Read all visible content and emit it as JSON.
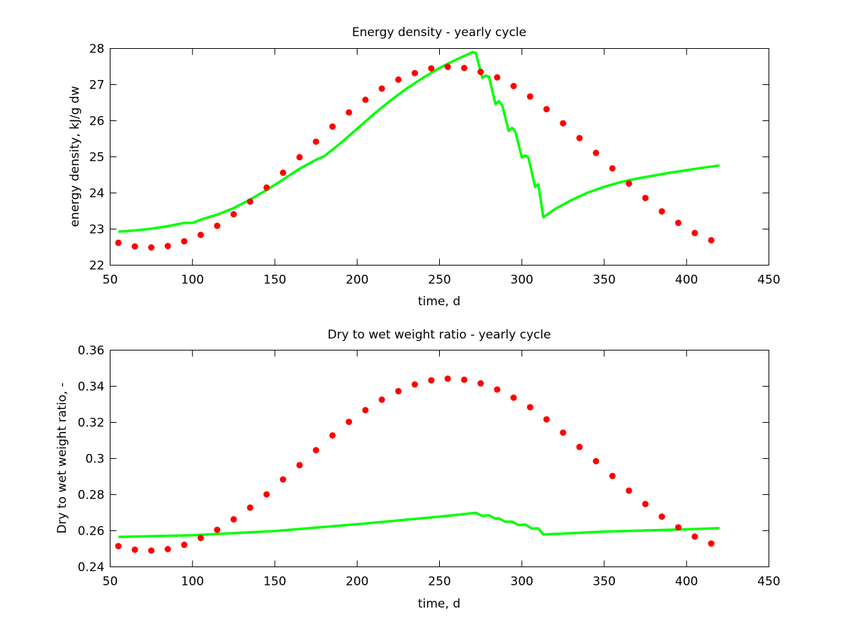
{
  "chart_data": [
    {
      "type": "scatter",
      "title": "Energy density - yearly cycle",
      "xlabel": "time, d",
      "ylabel": "energy density, kJ/g dw",
      "xlim": [
        50,
        450
      ],
      "ylim": [
        22,
        28
      ],
      "xticks": [
        50,
        100,
        150,
        200,
        250,
        300,
        350,
        400,
        450
      ],
      "yticks": [
        22,
        23,
        24,
        25,
        26,
        27,
        28
      ],
      "grid": false,
      "colors": {
        "points": "#ff0000",
        "line": "#00ff00"
      },
      "series": [
        {
          "kind": "points",
          "x": [
            55,
            65,
            75,
            85,
            95,
            105,
            115,
            125,
            135,
            145,
            155,
            165,
            175,
            185,
            195,
            205,
            215,
            225,
            235,
            245,
            255,
            265,
            275,
            285,
            295,
            305,
            315,
            325,
            335,
            345,
            355,
            365,
            375,
            385,
            395,
            405,
            415
          ],
          "y": [
            22.62,
            22.52,
            22.49,
            22.53,
            22.66,
            22.84,
            23.09,
            23.41,
            23.76,
            24.15,
            24.56,
            24.99,
            25.42,
            25.84,
            26.23,
            26.58,
            26.89,
            27.14,
            27.32,
            27.45,
            27.49,
            27.46,
            27.35,
            27.2,
            26.96,
            26.67,
            26.32,
            25.93,
            25.52,
            25.11,
            24.68,
            24.26,
            23.86,
            23.49,
            23.17,
            22.89,
            22.69
          ]
        },
        {
          "kind": "line",
          "x": [
            55,
            65,
            75,
            85,
            95,
            100,
            105,
            115,
            125,
            135,
            145,
            155,
            165,
            175,
            180,
            190,
            200,
            210,
            220,
            230,
            240,
            250,
            260,
            270,
            272,
            276,
            278,
            280,
            284,
            286,
            288,
            292,
            294,
            296,
            300,
            302,
            304,
            308,
            310,
            313,
            320,
            330,
            340,
            350,
            360,
            370,
            380,
            390,
            400,
            410,
            420
          ],
          "y": [
            22.93,
            22.96,
            23.01,
            23.08,
            23.17,
            23.17,
            23.26,
            23.4,
            23.58,
            23.82,
            24.08,
            24.37,
            24.67,
            24.92,
            25.02,
            25.38,
            25.78,
            26.18,
            26.55,
            26.89,
            27.19,
            27.46,
            27.69,
            27.9,
            27.88,
            27.19,
            27.25,
            27.22,
            26.46,
            26.54,
            26.44,
            25.72,
            25.8,
            25.7,
            24.98,
            25.04,
            24.98,
            24.17,
            24.24,
            23.33,
            23.55,
            23.8,
            24.01,
            24.17,
            24.3,
            24.4,
            24.48,
            24.56,
            24.63,
            24.7,
            24.76
          ]
        }
      ]
    },
    {
      "type": "scatter",
      "title": "Dry to wet weight ratio - yearly cycle",
      "xlabel": "time, d",
      "ylabel": "Dry to wet weight ratio, -",
      "xlim": [
        50,
        450
      ],
      "ylim": [
        0.24,
        0.36
      ],
      "xticks": [
        50,
        100,
        150,
        200,
        250,
        300,
        350,
        400,
        450
      ],
      "yticks": [
        0.24,
        0.26,
        0.28,
        0.3,
        0.32,
        0.34,
        0.36
      ],
      "ytick_labels": [
        "0.24",
        "0.26",
        "0.28",
        "0.3",
        "0.32",
        "0.34",
        "0.36"
      ],
      "grid": false,
      "colors": {
        "points": "#ff0000",
        "line": "#00ff00"
      },
      "series": [
        {
          "kind": "points",
          "x": [
            55,
            65,
            75,
            85,
            95,
            105,
            115,
            125,
            135,
            145,
            155,
            165,
            175,
            185,
            195,
            205,
            215,
            225,
            235,
            245,
            255,
            265,
            275,
            285,
            295,
            305,
            315,
            325,
            335,
            345,
            355,
            365,
            375,
            385,
            395,
            405,
            415
          ],
          "y": [
            0.2515,
            0.2495,
            0.249,
            0.2498,
            0.2522,
            0.256,
            0.2605,
            0.2663,
            0.2728,
            0.2801,
            0.2884,
            0.2963,
            0.3046,
            0.3128,
            0.3203,
            0.3268,
            0.3326,
            0.3373,
            0.341,
            0.3433,
            0.3442,
            0.3436,
            0.3416,
            0.3382,
            0.3337,
            0.3284,
            0.3217,
            0.3143,
            0.3064,
            0.2985,
            0.2903,
            0.2822,
            0.2748,
            0.2678,
            0.2619,
            0.2568,
            0.2529
          ]
        },
        {
          "kind": "line",
          "x": [
            55,
            100,
            150,
            200,
            250,
            272,
            276,
            280,
            284,
            286,
            290,
            294,
            298,
            302,
            306,
            310,
            313,
            350,
            400,
            420
          ],
          "y": [
            0.2566,
            0.2575,
            0.2598,
            0.2636,
            0.2678,
            0.2699,
            0.2682,
            0.2685,
            0.2667,
            0.2669,
            0.2649,
            0.2651,
            0.2631,
            0.2634,
            0.2612,
            0.2613,
            0.2579,
            0.2595,
            0.2608,
            0.2614
          ]
        }
      ]
    }
  ]
}
